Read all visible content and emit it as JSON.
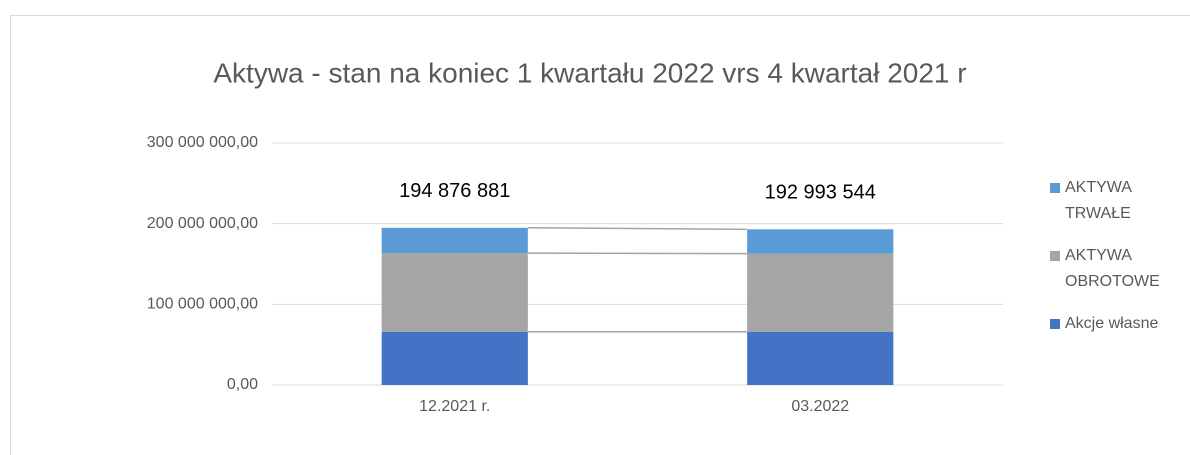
{
  "chart_data": {
    "type": "stacked_bar",
    "title": "Aktywa - stan na koniec 1 kwartału 2022 vrs 4 kwartał 2021 r",
    "categories": [
      "12.2021 r.",
      "03.2022"
    ],
    "series": [
      {
        "name": "Akcje własne",
        "color": "#4472c4",
        "values": [
          66000000,
          66000000
        ]
      },
      {
        "name": "AKTYWA OBROTOWE",
        "color": "#a5a5a5",
        "values": [
          97500000,
          96800000
        ]
      },
      {
        "name": "AKTYWA TRWAŁE",
        "color": "#5b9bd5",
        "values": [
          31376881,
          30193544
        ]
      }
    ],
    "totals": [
      194876881,
      192993544
    ],
    "total_labels": [
      "194 876 881",
      "192 993 544"
    ],
    "ylim": [
      0,
      300000000
    ],
    "yticks": [
      {
        "value": 0,
        "label": "0,00"
      },
      {
        "value": 100000000,
        "label": "100 000 000,00"
      },
      {
        "value": 200000000,
        "label": "200 000 000,00"
      },
      {
        "value": 300000000,
        "label": "300 000 000,00"
      }
    ],
    "grid": true,
    "series_lines": true,
    "legend": "right"
  }
}
